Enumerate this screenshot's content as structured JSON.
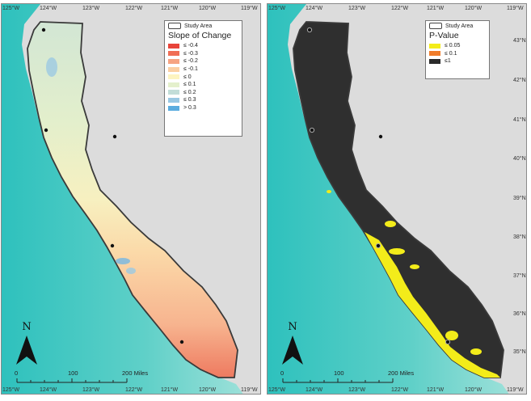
{
  "top_lon_labels": [
    "125°W",
    "124°W",
    "123°W",
    "122°W",
    "121°W",
    "120°W",
    "119°W"
  ],
  "bottom_lon_labels": [
    "125°W",
    "124°W",
    "123°W",
    "122°W",
    "121°W",
    "120°W",
    "119°W"
  ],
  "lat_labels": [
    "43°N",
    "42°N",
    "41°N",
    "40°N",
    "39°N",
    "38°N",
    "37°N",
    "36°N",
    "35°N"
  ],
  "left_map": {
    "legend": {
      "study_area_label": "Study Area",
      "title": "Slope of Change",
      "classes": [
        {
          "label": "≤ -0.4",
          "color": "#e8443a"
        },
        {
          "label": "≤ -0.3",
          "color": "#f06e55"
        },
        {
          "label": "≤ -0.2",
          "color": "#f6a382"
        },
        {
          "label": "≤ -0.1",
          "color": "#fbcfa3"
        },
        {
          "label": "≤ 0",
          "color": "#fdf4c0"
        },
        {
          "label": "≤ 0.1",
          "color": "#e4f0cc"
        },
        {
          "label": "≤ 0.2",
          "color": "#c2ddd8"
        },
        {
          "label": "≤ 0.3",
          "color": "#99c8e3"
        },
        {
          "label": "> 0.3",
          "color": "#5aacdf"
        }
      ]
    },
    "north_label": "N",
    "scale_labels": [
      "0",
      "100",
      "200 Miles"
    ]
  },
  "right_map": {
    "legend": {
      "study_area_label": "Study Area",
      "title": "P-Value",
      "classes": [
        {
          "label": "≤ 0.05",
          "color": "#f3ec1a"
        },
        {
          "label": "≤ 0.1",
          "color": "#f07c2a"
        },
        {
          "label": "≤1",
          "color": "#2a2a2a"
        }
      ]
    },
    "north_label": "N",
    "scale_labels": [
      "0",
      "100",
      "200 Miles"
    ]
  },
  "colors": {
    "ocean": "#3cc6c0",
    "land": "#d9d9d9",
    "study_area_outline": "#3a3a3a"
  }
}
